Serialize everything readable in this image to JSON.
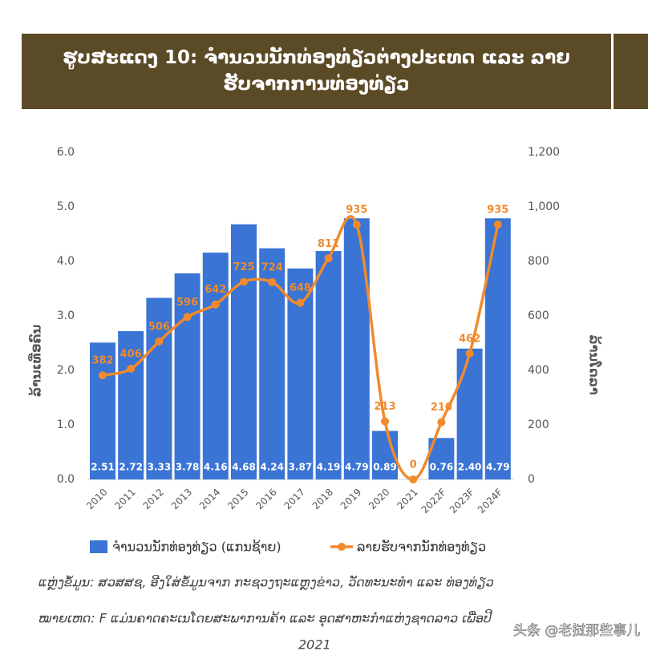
{
  "chart_data": {
    "type": "combo",
    "title": "ຮູບສະແດງ 10: ຈຳນວນນັກທ່ອງທ່ຽວຕ່າງປະເທດ ແລະ ລາຍຮັບຈາກການທ່ອງທ່ຽວ",
    "ylabel": "ລ້ານເທື່ອຄົນ",
    "y2label": "ລ້ານໂດລາ",
    "categories": [
      "2010",
      "2011",
      "2012",
      "2013",
      "2014",
      "2015",
      "2016",
      "2017",
      "2018",
      "2019",
      "2020",
      "2021",
      "2022F",
      "2023F",
      "2024F"
    ],
    "series": [
      {
        "name": "ຈຳນວນນັກທ່ອງທ່ຽວ (ແກນຊ້າຍ)",
        "type": "bar",
        "color": "#3a74d4",
        "values": [
          2.51,
          2.72,
          3.33,
          3.78,
          4.16,
          4.68,
          4.24,
          3.87,
          4.19,
          4.79,
          0.89,
          null,
          0.76,
          2.4,
          4.79
        ],
        "value_labels": [
          "2.51",
          "2.72",
          "3.33",
          "3.78",
          "4.16",
          "4.68",
          "4.24",
          "3.87",
          "4.19",
          "4.79",
          "0.89",
          null,
          "0.76",
          "2.40",
          "4.79"
        ]
      },
      {
        "name": "ລາຍຮັບຈາກນັກທ່ອງທ່ຽວ",
        "type": "line",
        "axis": "y2",
        "color": "#f08a2c",
        "values": [
          382,
          406,
          506,
          596,
          642,
          725,
          724,
          648,
          811,
          935,
          213,
          0,
          210,
          462,
          935
        ]
      }
    ],
    "ylim": [
      0,
      6
    ],
    "yticks": [
      {
        "value": 0,
        "label": "0.0"
      },
      {
        "value": 1,
        "label": "1.0"
      },
      {
        "value": 2,
        "label": "2.0"
      },
      {
        "value": 3,
        "label": "3.0"
      },
      {
        "value": 4,
        "label": "4.0"
      },
      {
        "value": 5,
        "label": "5.0"
      },
      {
        "value": 6,
        "label": "6.0"
      }
    ],
    "y2lim": [
      0,
      1200
    ],
    "y2ticks": [
      0,
      200,
      400,
      600,
      800,
      {
        "value": 1000,
        "label": "1,000"
      },
      {
        "value": 1200,
        "label": "1,200"
      }
    ],
    "grid": false,
    "notes": [
      "ແຫຼ່ງຂໍ້ມູນ: ສວສສຊ, ອີງໃສ່ຂໍ້ມູນຈາກ ກະຊວງຖະແຫຼງຂ່າວ, ວັດທະນະທຳ ແລະ ທ່ອງທ່ຽວ",
      "ໝາຍເຫດ: F ແມ່ນຄາດຄະເນໂດຍສະພາການຄ້າ ແລະ ອຸດສາຫະກຳແຫ່ງຊາດລາວ ເພື່ອປີ",
      "2021"
    ],
    "watermark": "头条 @老挝那些事儿"
  }
}
